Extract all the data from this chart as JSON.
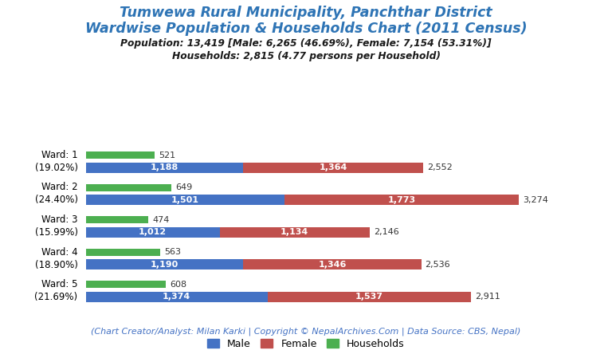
{
  "title_line1": "Tumwewa Rural Municipality, Panchthar District",
  "title_line2": "Wardwise Population & Households Chart (2011 Census)",
  "subtitle_line1": "Population: 13,419 [Male: 6,265 (46.69%), Female: 7,154 (53.31%)]",
  "subtitle_line2": "Households: 2,815 (4.77 persons per Household)",
  "footer": "(Chart Creator/Analyst: Milan Karki | Copyright © NepalArchives.Com | Data Source: CBS, Nepal)",
  "wards": [
    {
      "label": "Ward: 1\n(19.02%)",
      "male": 1188,
      "female": 1364,
      "households": 521,
      "total_pop": 2552
    },
    {
      "label": "Ward: 2\n(24.40%)",
      "male": 1501,
      "female": 1773,
      "households": 649,
      "total_pop": 3274
    },
    {
      "label": "Ward: 3\n(15.99%)",
      "male": 1012,
      "female": 1134,
      "households": 474,
      "total_pop": 2146
    },
    {
      "label": "Ward: 4\n(18.90%)",
      "male": 1190,
      "female": 1346,
      "households": 563,
      "total_pop": 2536
    },
    {
      "label": "Ward: 5\n(21.69%)",
      "male": 1374,
      "female": 1537,
      "households": 608,
      "total_pop": 2911
    }
  ],
  "colors": {
    "male": "#4472C4",
    "female": "#C0504D",
    "households": "#4CAF50",
    "title": "#2E74B5",
    "subtitle": "#1a1a1a",
    "footer": "#4472C4",
    "background": "#FFFFFF"
  },
  "pop_bar_height": 0.32,
  "hh_bar_height": 0.22,
  "xlim": [
    0,
    3700
  ],
  "figsize": [
    7.68,
    4.49
  ],
  "dpi": 100
}
